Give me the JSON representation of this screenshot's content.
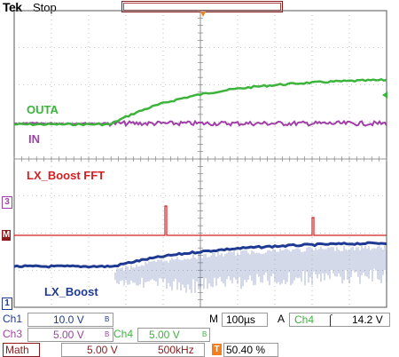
{
  "header": {
    "brand": "Tek",
    "run_state": "Stop"
  },
  "traces": {
    "outa": {
      "label": "OUTA",
      "color": "#3cb43c"
    },
    "in": {
      "label": "IN",
      "color": "#a040a8"
    },
    "fft": {
      "label": "LX_Boost FFT",
      "color": "#d42020"
    },
    "lx": {
      "label": "LX_Boost",
      "color": "#1f3a93"
    }
  },
  "markers": {
    "ch3": "3",
    "math": "M",
    "ch1": "1"
  },
  "status": {
    "ch1_label": "Ch1",
    "ch1_scale": "10.0 V",
    "ch1_bw": "B",
    "ch3_label": "Ch3",
    "ch3_scale": "5.00 V",
    "ch3_bw": "B",
    "ch4_label": "Ch4",
    "ch4_scale": "5.00 V",
    "ch4_bw": "B",
    "timebase_prefix": "M",
    "timebase": "100µs",
    "trigger_prefix": "A",
    "trigger_source": "Ch4",
    "trigger_slope": "⌠",
    "trigger_level": "14.2 V",
    "math_label": "Math",
    "math_scale": "5.00 V",
    "math_span": "500kHz",
    "t_marker": "T",
    "position": "50.40 %"
  },
  "colors": {
    "ch1": "#1f3a93",
    "ch3": "#a040a8",
    "ch4": "#3cb43c",
    "math": "#8b1a1a",
    "trigger": "#f08020"
  }
}
